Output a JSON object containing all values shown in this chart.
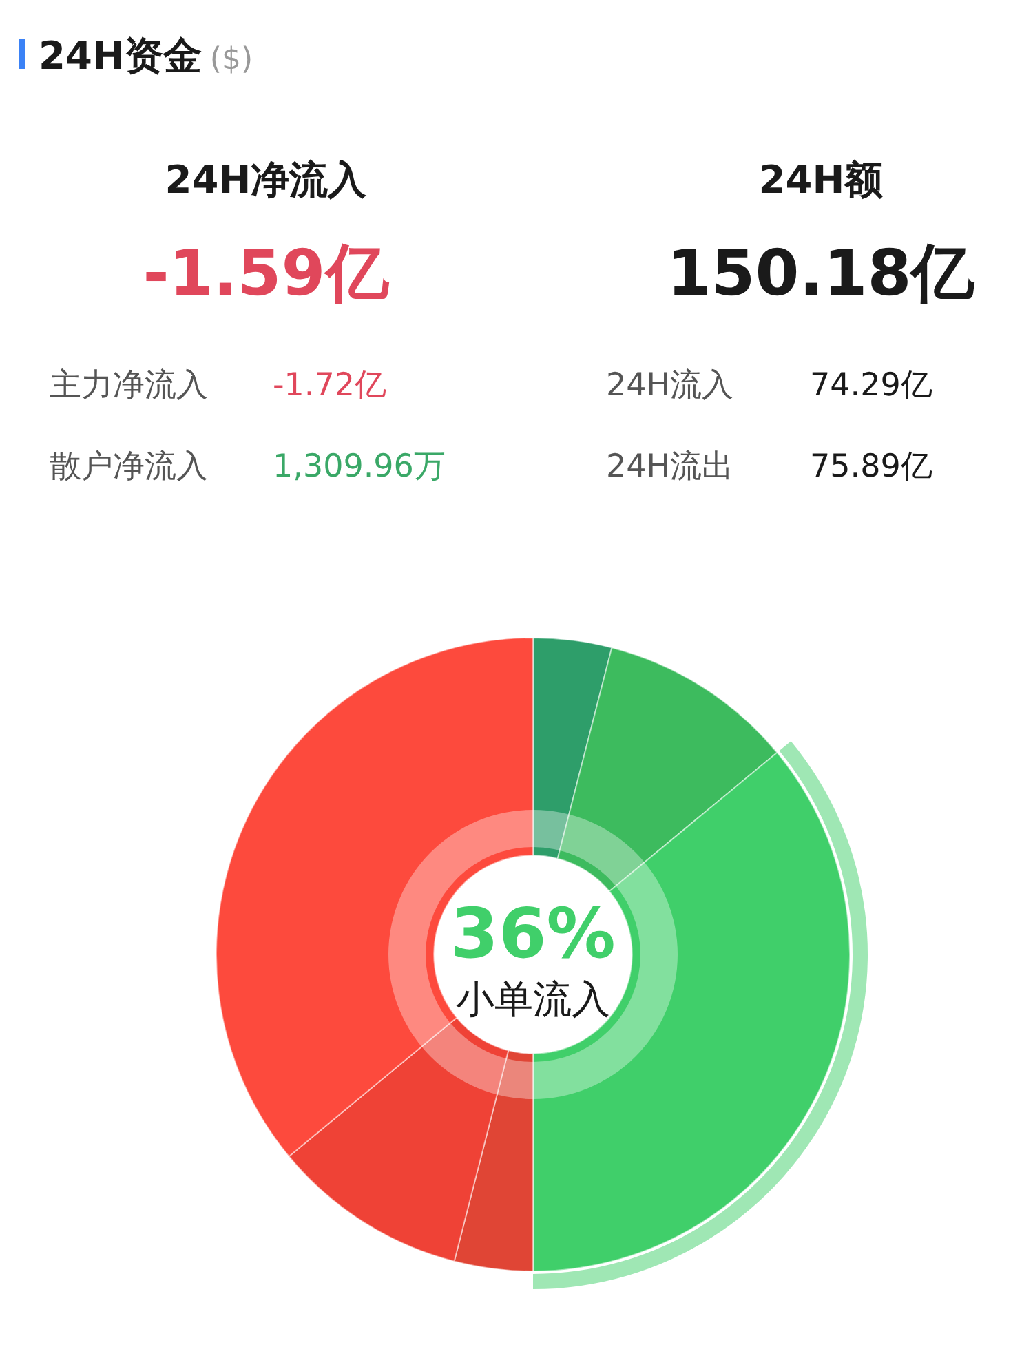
{
  "chart_data": [
    {
      "type": "other",
      "title": "24H资金",
      "subtitle": "($)",
      "annotations": [
        "24H净流入",
        "-1.59亿",
        "主力净流入",
        "-1.72亿",
        "散户净流入",
        "1,309.96万",
        "24H额",
        "150.18亿",
        "24H流入",
        "74.29亿",
        "24H流出",
        "75.89亿"
      ]
    },
    {
      "type": "donut",
      "categories": [
        null,
        null,
        "小单流入",
        null,
        null,
        null
      ],
      "values": [
        4,
        10,
        36,
        4,
        10,
        36
      ],
      "value_labels": [
        null,
        null,
        "36%",
        null,
        null,
        null
      ],
      "colors": [
        "#2e9e6a",
        "#3dbb5e",
        "#40cf6a",
        "#e04535",
        "#ef4236",
        "#fd4a3d"
      ],
      "legend": false
    }
  ]
}
